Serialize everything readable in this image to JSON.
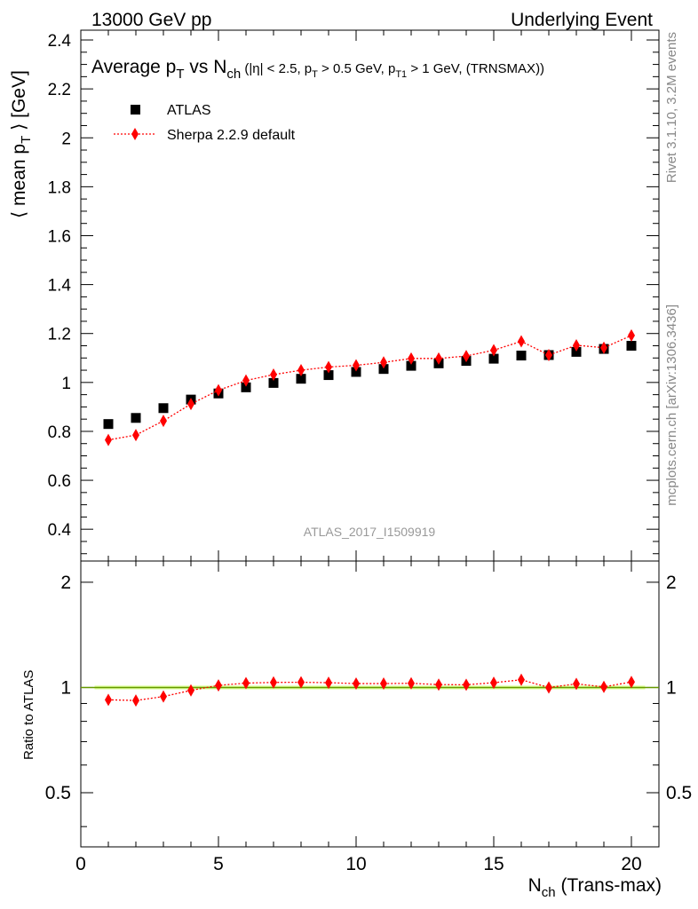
{
  "header": {
    "left": "13000 GeV pp",
    "right": "Underlying Event"
  },
  "side_text": {
    "rivet": "Rivet 3.1.10,  3.2M events",
    "mcplots": "mcplots.cern.ch [arXiv:1306.3436]"
  },
  "watermark": "ATLAS_2017_I1509919",
  "colors": {
    "data": "#000000",
    "mc": "#ff0000",
    "band": "#ccff66",
    "ratio_line": "#669900"
  },
  "chart_data": [
    {
      "type": "scatter",
      "title": "Average p_T vs N_ch (|η| < 2.5, p_T > 0.5 GeV, p_T1 > 1 GeV, (TRNSMAX))",
      "ylabel": "⟨ mean p_T ⟩ [GeV]",
      "xlim": [
        0,
        21
      ],
      "ylim": [
        0.27,
        2.44
      ],
      "yticks": [
        "0.4",
        "0.6",
        "0.8",
        "1",
        "1.2",
        "1.4",
        "1.6",
        "1.8",
        "2",
        "2.2",
        "2.4"
      ],
      "legend": {
        "placement": "top-left",
        "entries": [
          "ATLAS",
          "Sherpa 2.2.9 default"
        ]
      },
      "series": [
        {
          "name": "ATLAS",
          "x": [
            1,
            2,
            3,
            4,
            5,
            6,
            7,
            8,
            9,
            10,
            11,
            12,
            13,
            14,
            15,
            16,
            17,
            18,
            19,
            20
          ],
          "y": [
            0.83,
            0.855,
            0.895,
            0.93,
            0.955,
            0.98,
            0.998,
            1.015,
            1.03,
            1.043,
            1.055,
            1.068,
            1.078,
            1.088,
            1.097,
            1.11,
            1.112,
            1.125,
            1.137,
            1.15
          ]
        },
        {
          "name": "Sherpa 2.2.9 default",
          "x": [
            1,
            2,
            3,
            4,
            5,
            6,
            7,
            8,
            9,
            10,
            11,
            12,
            13,
            14,
            15,
            16,
            17,
            18,
            19,
            20
          ],
          "y": [
            0.765,
            0.785,
            0.843,
            0.912,
            0.968,
            1.008,
            1.032,
            1.05,
            1.063,
            1.07,
            1.082,
            1.098,
            1.098,
            1.108,
            1.132,
            1.168,
            1.112,
            1.152,
            1.142,
            1.192
          ]
        }
      ]
    },
    {
      "type": "scatter",
      "xlabel": "N_ch (Trans-max)",
      "ylabel": "Ratio to ATLAS",
      "xlim": [
        0,
        21
      ],
      "ylim": [
        0.35,
        2.3
      ],
      "log_y": true,
      "xticks": [
        "0",
        "5",
        "10",
        "15",
        "20"
      ],
      "yticks": [
        "0.5",
        "1",
        "2"
      ],
      "series": [
        {
          "name": "Sherpa 2.2.9 default",
          "x": [
            1,
            2,
            3,
            4,
            5,
            6,
            7,
            8,
            9,
            10,
            11,
            12,
            13,
            14,
            15,
            16,
            17,
            18,
            19,
            20
          ],
          "y": [
            0.922,
            0.918,
            0.942,
            0.981,
            1.014,
            1.029,
            1.034,
            1.035,
            1.032,
            1.026,
            1.026,
            1.028,
            1.019,
            1.018,
            1.032,
            1.052,
            1.0,
            1.024,
            1.004,
            1.037
          ]
        }
      ]
    }
  ]
}
